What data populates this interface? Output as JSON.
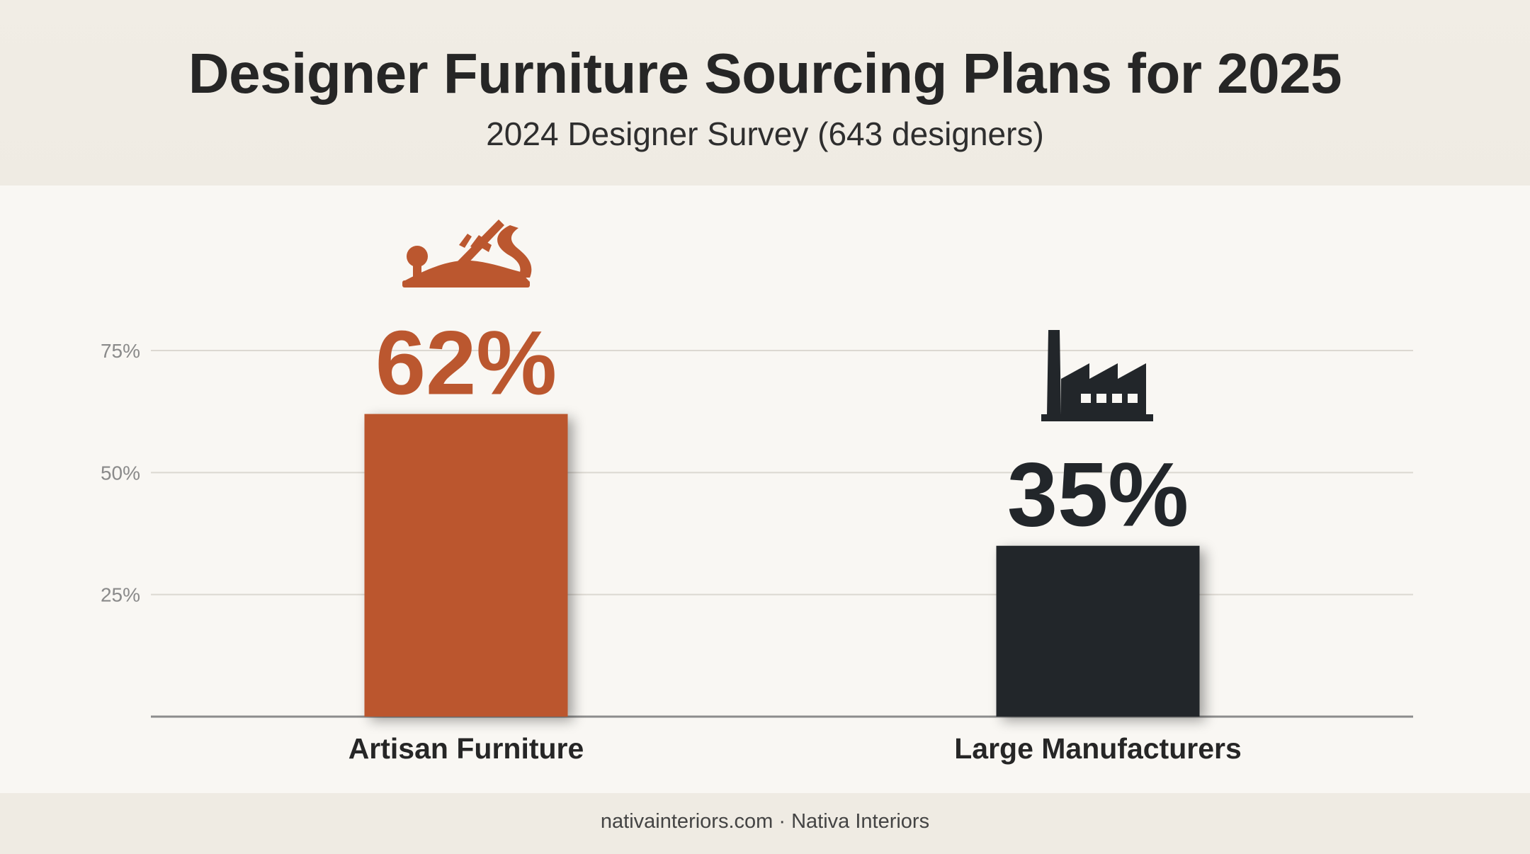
{
  "title": "Designer Furniture Sourcing Plans for 2025",
  "subtitle": "2024 Designer Survey (643 designers)",
  "source": "nativainteriors.com · Nativa Interiors",
  "colors": {
    "artisan": "#bb572f",
    "manufacturers": "#22262a",
    "grid": "#dcd8d1",
    "axis": "#8c8c8c"
  },
  "icons": [
    "hand-plane-icon",
    "factory-icon"
  ],
  "chart_data": {
    "type": "bar",
    "title": "Designer Furniture Sourcing Plans for 2025",
    "subtitle": "2024 Designer Survey (643 designers)",
    "categories": [
      "Artisan Furniture",
      "Large Manufacturers"
    ],
    "values": [
      62,
      35
    ],
    "value_labels": [
      "62%",
      "35%"
    ],
    "y_ticks": [
      25,
      50,
      75
    ],
    "y_tick_labels": [
      "25%",
      "50%",
      "75%"
    ],
    "ylim": [
      0,
      100
    ],
    "grid": true,
    "legend": "none"
  }
}
